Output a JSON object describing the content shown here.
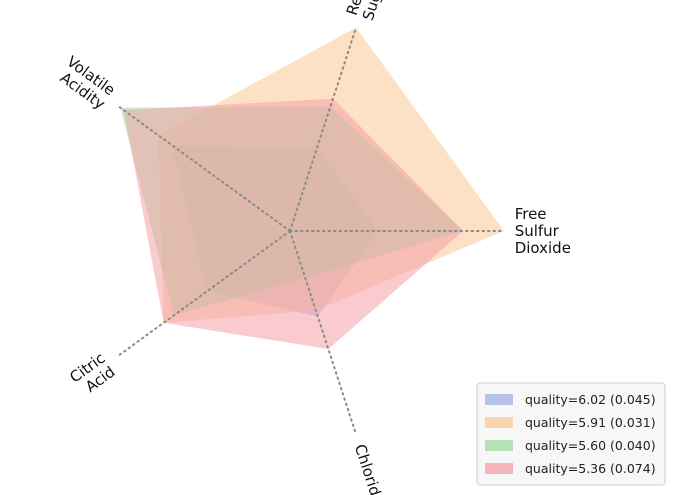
{
  "chart_data": {
    "type": "radar",
    "title": "",
    "axes": [
      "Free Sulfur Dioxide",
      "Residual Sugar",
      "Volatile Acidity",
      "Citric Acid",
      "Chlorides"
    ],
    "axis_label_lines": [
      [
        "Free",
        "Sulfur",
        "Dioxide"
      ],
      [
        "Residual",
        "Sugar"
      ],
      [
        "Volatile",
        "Acidity"
      ],
      [
        "Citric",
        "Acid"
      ],
      [
        "Chlorides"
      ]
    ],
    "rmax": 1.0,
    "grid": true,
    "legend_position": "bottom-right",
    "series": [
      {
        "name": "quality=6.02 (0.045)",
        "color": "#9fb0ea",
        "values": [
          0.41,
          0.41,
          0.68,
          0.48,
          0.42
        ]
      },
      {
        "name": "quality=5.91 (0.031)",
        "color": "#fcc894",
        "values": [
          1.0,
          1.0,
          0.76,
          0.73,
          0.39
        ]
      },
      {
        "name": "quality=5.60 (0.040)",
        "color": "#9fd9a0",
        "values": [
          0.81,
          0.61,
          0.98,
          0.67,
          0.23
        ]
      },
      {
        "name": "quality=5.36 (0.074)",
        "color": "#f4a0a7",
        "values": [
          0.81,
          0.65,
          0.96,
          0.73,
          0.58
        ]
      }
    ]
  }
}
